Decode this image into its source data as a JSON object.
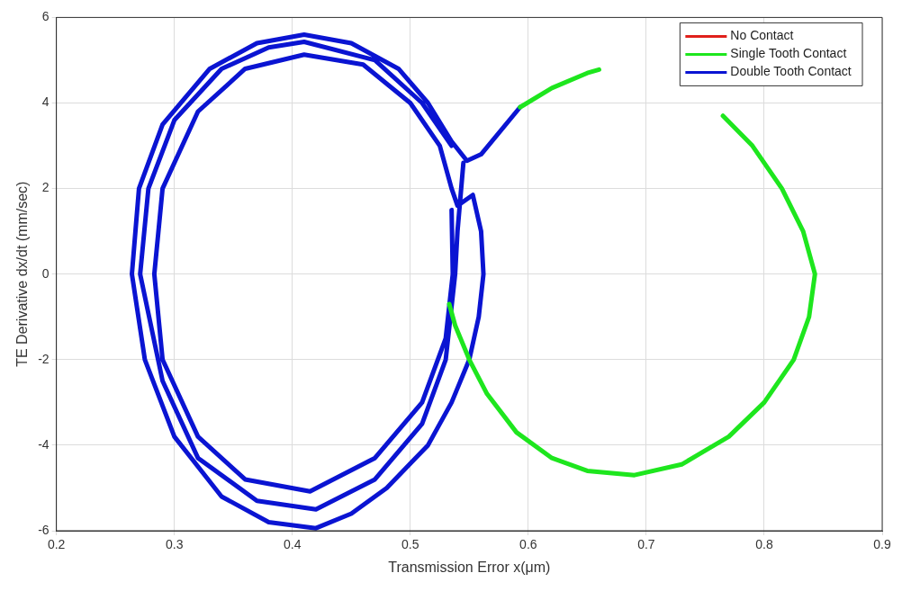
{
  "chart_data": {
    "type": "line",
    "xlabel": "Transmission Error x(μm)",
    "ylabel": "TE Derivative dx/dt (mm/sec)",
    "xlim": [
      0.2,
      0.9
    ],
    "xticks": [
      0.2,
      0.3,
      0.4,
      0.5,
      0.6,
      0.7,
      0.8,
      0.9
    ],
    "ylim": [
      -6,
      6
    ],
    "yticks": [
      -6,
      -4,
      -2,
      0,
      2,
      4,
      6
    ],
    "grid": true,
    "legend": "top right",
    "marker": "none",
    "line_style": "solid",
    "series": [
      {
        "name": "No Contact",
        "color": "#e0201b"
      },
      {
        "name": "Single Tooth Contact",
        "color": "#1ee61e",
        "x": [
          0.593,
          0.62,
          0.65,
          0.66,
          null,
          0.765,
          0.79,
          0.815,
          0.833,
          0.843,
          0.838,
          0.825,
          0.8,
          0.77,
          0.73,
          0.69,
          0.65,
          0.62,
          0.59,
          0.565,
          0.55,
          0.538,
          0.533
        ],
        "values": [
          3.9,
          4.35,
          4.7,
          4.78,
          null,
          3.7,
          3.0,
          2.0,
          1.0,
          0,
          -1.0,
          -2.0,
          -3.0,
          -3.8,
          -4.45,
          -4.7,
          -4.6,
          -4.3,
          -3.7,
          -2.8,
          -2.0,
          -1.2,
          -0.7
        ]
      },
      {
        "name": "Double Tooth Contact",
        "color": "#0a14d2",
        "x": [
          0.535,
          0.536,
          0.53,
          0.51,
          0.47,
          0.415,
          0.36,
          0.32,
          0.29,
          0.283,
          0.29,
          0.32,
          0.36,
          0.41,
          0.46,
          0.5,
          0.525,
          0.535,
          0.54,
          0.553,
          0.56,
          0.562,
          0.558,
          0.55,
          0.535,
          0.515,
          0.48,
          0.45,
          0.42,
          0.38,
          0.34,
          0.3,
          0.275,
          0.264,
          0.27,
          0.29,
          0.33,
          0.37,
          0.41,
          0.45,
          0.49,
          0.515,
          0.535,
          0.548,
          0.56,
          0.593,
          null,
          0.545,
          0.54,
          0.538,
          0.53,
          0.51,
          0.47,
          0.42,
          0.37,
          0.32,
          0.29,
          0.271,
          0.278,
          0.3,
          0.34,
          0.38,
          0.41,
          0.47,
          0.51,
          0.535
        ],
        "values": [
          1.5,
          0,
          -1.5,
          -3.0,
          -4.3,
          -5.08,
          -4.8,
          -3.8,
          -2.0,
          0,
          2.0,
          3.8,
          4.8,
          5.13,
          4.9,
          4.0,
          3.0,
          2.0,
          1.6,
          1.85,
          1.0,
          0,
          -1.0,
          -2.0,
          -3.0,
          -4.0,
          -5.0,
          -5.6,
          -5.94,
          -5.8,
          -5.2,
          -3.8,
          -2.0,
          0,
          2.0,
          3.5,
          4.8,
          5.4,
          5.6,
          5.4,
          4.8,
          4.0,
          3.1,
          2.65,
          2.8,
          3.9,
          null,
          2.6,
          1.0,
          0,
          -2.0,
          -3.5,
          -4.8,
          -5.5,
          -5.3,
          -4.3,
          -2.5,
          0,
          2.0,
          3.6,
          4.8,
          5.3,
          5.43,
          5.0,
          4.0,
          3.0
        ]
      }
    ]
  }
}
